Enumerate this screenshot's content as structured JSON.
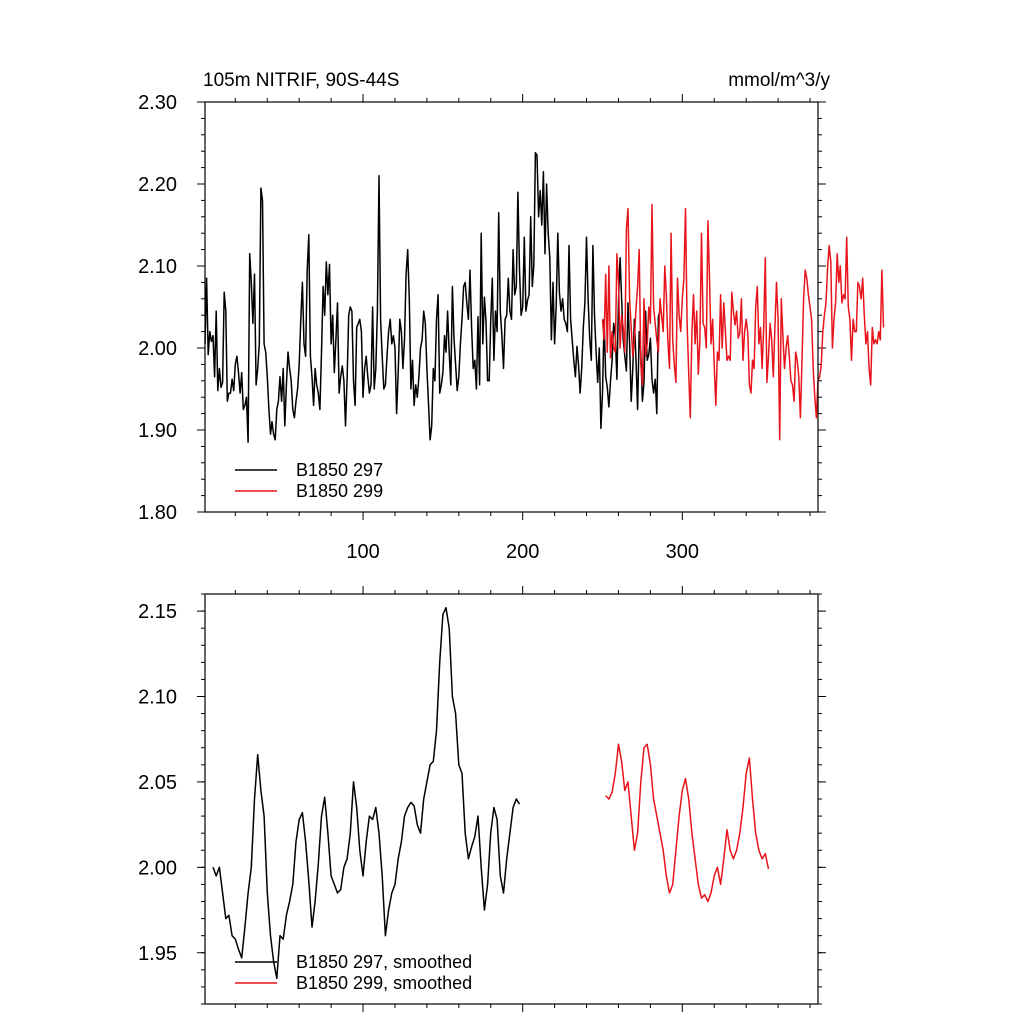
{
  "chart_data": [
    {
      "type": "line",
      "title": "105m NITRIF, 90S-44S",
      "units": "mmol/m^3/y",
      "xlim": [
        1,
        385
      ],
      "ylim": [
        1.8,
        2.3
      ],
      "yticks": [
        1.8,
        1.9,
        2.0,
        2.1,
        2.2,
        2.3
      ],
      "ytick_labels": [
        "1.80",
        "1.90",
        "2.00",
        "2.10",
        "2.20",
        "2.30"
      ],
      "xticks": [
        100,
        200,
        300
      ],
      "xtick_labels": [
        "100",
        "200",
        "300"
      ],
      "legend_position": "bottom-left",
      "grid": false,
      "series": [
        {
          "name": "B1850 297",
          "color": "#000000",
          "x_start": 1,
          "x_step": 1,
          "values": [
            2.005,
            2.085,
            1.992,
            2.02,
            2.008,
            2.015,
            1.965,
            2.045,
            1.948,
            1.975,
            1.952,
            1.958,
            2.068,
            2.045,
            1.935,
            1.945,
            1.945,
            1.962,
            1.948,
            1.98,
            1.99,
            1.97,
            1.945,
            1.97,
            1.925,
            1.93,
            1.94,
            1.885,
            2.115,
            2.08,
            2.03,
            2.09,
            1.955,
            1.975,
            2.005,
            2.195,
            2.18,
            2.005,
            1.995,
            1.965,
            1.925,
            1.895,
            1.91,
            1.895,
            1.888,
            1.925,
            1.935,
            1.965,
            1.935,
            1.975,
            1.905,
            1.955,
            1.995,
            1.975,
            1.96,
            1.925,
            1.915,
            1.935,
            1.95,
            1.98,
            2.035,
            2.08,
            2.005,
            1.99,
            2.095,
            2.138,
            1.99,
            1.965,
            1.93,
            1.975,
            1.955,
            1.945,
            1.925,
            1.995,
            2.075,
            2.04,
            2.105,
            2.065,
            2.102,
            2.005,
            2.04,
            1.97,
            2.01,
            2.055,
            1.945,
            1.965,
            1.978,
            1.96,
            1.905,
            1.962,
            2.04,
            2.05,
            2.045,
            1.96,
            1.93,
            2.025,
            2.03,
            2.035,
            2.02,
            1.94,
            1.975,
            1.99,
            1.965,
            1.945,
            1.955,
            2.05,
            1.95,
            1.975,
            2.045,
            2.21,
            2.035,
            1.99,
            1.95,
            1.955,
            1.99,
            2.02,
            2.035,
            2.005,
            2.015,
            2.0,
            1.92,
            1.97,
            2.035,
            2.02,
            1.975,
            2.01,
            2.09,
            2.12,
            2.06,
            1.95,
            1.985,
            1.93,
            1.955,
            1.94,
            1.965,
            2.0,
            2.01,
            2.045,
            2.03,
            1.975,
            1.932,
            1.888,
            1.905,
            1.975,
            1.96,
            2.035,
            2.065,
            1.945,
            1.955,
            1.97,
            2.015,
            1.995,
            2.045,
            1.995,
            1.955,
            2.075,
            2.012,
            1.98,
            1.948,
            1.965,
            2.005,
            2.035,
            2.075,
            2.08,
            2.055,
            2.035,
            2.095,
            2.025,
            1.975,
            1.985,
            1.95,
            2.038,
            1.955,
            2.14,
            2.005,
            2.062,
            2.033,
            1.96,
            1.96,
            2.032,
            2.085,
            1.985,
            2.045,
            2.02,
            2.165,
            2.045,
            2.015,
            1.975,
            2.035,
            2.04,
            2.085,
            2.045,
            2.035,
            2.12,
            2.065,
            2.075,
            2.19,
            2.095,
            2.04,
            2.05,
            2.135,
            2.045,
            2.058,
            2.065,
            2.16,
            2.075,
            2.1,
            2.238,
            2.235,
            2.16,
            2.192,
            2.15,
            2.215,
            2.115,
            2.2,
            2.14,
            2.11,
            2.01,
            2.08,
            2.005,
            2.052,
            2.14,
            2.068,
            2.045,
            2.06,
            2.035,
            2.03,
            2.02,
            2.125,
            2.035,
            2.01,
            1.985,
            1.965,
            2.002,
            1.98,
            1.945,
            1.975,
            2.025,
            2.055,
            2.135,
            2.06,
            2.012,
            1.985,
            2.125,
            2.04,
            1.995,
            1.958,
            2.0,
            1.902,
            1.945,
            2.035,
            1.965,
            1.952,
            1.928,
            1.96,
            1.985,
            2.03,
            2.015,
            1.962,
            2.058,
            2.11,
            2.06,
            2.01,
            1.99,
            1.972,
            2.055,
            2.005,
            1.935,
            1.975,
            2.035,
            1.985,
            1.925,
            2.02,
            1.995,
            1.935,
            1.958,
            2.045,
            1.985,
            1.992,
            2.012,
            1.962,
            1.945,
            1.962,
            1.92,
            2.038,
            2.045
          ]
        },
        {
          "name": "B1850 299",
          "color": "#e8141c",
          "x_start": 250,
          "x_step": 1,
          "values": [
            2.035,
            2.01,
            2.09,
            1.995,
            2.1,
            1.988,
            2.02,
            2.0,
            1.995,
            2.115,
            2.08,
            2.0,
            2.04,
            2.025,
            1.995,
            2.145,
            2.17,
            2.06,
            2.025,
            1.99,
            2.01,
            2.048,
            2.075,
            2.12,
            1.98,
            1.955,
            2.06,
            1.99,
            2.005,
            2.05,
            2.03,
            2.175,
            2.05,
            2.03,
            2.01,
            1.995,
            2.06,
            2.04,
            2.02,
            2.1,
            2.065,
            2.008,
            1.975,
            2.14,
            2.01,
            1.98,
            1.958,
            2.085,
            2.04,
            2.02,
            2.06,
            2.085,
            2.17,
            2.03,
            1.97,
            1.915,
            2.02,
            2.065,
            2.005,
            2.045,
            1.968,
            2.01,
            2.14,
            2.03,
            2.025,
            2.0,
            2.155,
            2.09,
            2.005,
            2.035,
            1.98,
            1.93,
            1.995,
            1.985,
            2.065,
            2.0,
            2.055,
            2.02,
            1.985,
            1.99,
            1.985,
            2.068,
            2.045,
            2.028,
            2.045,
            2.012,
            2.018,
            2.06,
            1.985,
            2.02,
            2.035,
            2.018,
            1.955,
            1.945,
            1.985,
            1.975,
            2.05,
            2.075,
            2.005,
            2.025,
            1.975,
            2.025,
            2.11,
            1.958,
            1.99,
            2.03,
            2.01,
            1.965,
            2.025,
            2.08,
            2.035,
            1.888,
            2.06,
            2.015,
            1.975,
            2.0,
            2.015,
            1.99,
            1.96,
            1.955,
            1.935,
            1.995,
            1.985,
            1.965,
            1.915,
            1.985,
            2.06,
            2.095,
            2.085,
            2.065,
            2.05,
            2.035,
            1.975,
            1.94,
            1.915,
            1.96,
            1.965,
            1.978,
            2.02,
            2.04,
            2.055,
            2.098,
            2.125,
            2.105,
            2.0,
            2.035,
            2.055,
            2.115,
            2.08,
            2.1,
            2.055,
            2.065,
            2.06,
            2.135,
            2.05,
            2.035,
            1.985,
            2.035,
            2.02,
            2.02,
            2.08,
            2.075,
            2.06,
            2.085,
            2.04,
            2.005,
            2.02,
            1.975,
            1.955,
            2.025,
            2.005,
            2.01,
            2.005,
            2.02,
            2.01,
            2.095,
            2.025
          ]
        }
      ]
    },
    {
      "type": "line",
      "title": "",
      "xlim": [
        1,
        385
      ],
      "ylim": [
        1.92,
        2.16
      ],
      "yticks": [
        1.95,
        2.0,
        2.05,
        2.1,
        2.15
      ],
      "ytick_labels": [
        "1.95",
        "2.00",
        "2.05",
        "2.10",
        "2.15"
      ],
      "xticks": [
        100,
        200,
        300
      ],
      "xtick_labels": [],
      "legend_position": "bottom-left",
      "grid": false,
      "series": [
        {
          "name": "B1850 297, smoothed",
          "color": "#000000",
          "x_start": 6,
          "x_step": 2,
          "values": [
            2.0,
            1.995,
            2.0,
            1.985,
            1.97,
            1.972,
            1.96,
            1.958,
            1.952,
            1.947,
            1.965,
            1.985,
            2.0,
            2.04,
            2.066,
            2.045,
            2.03,
            1.985,
            1.96,
            1.945,
            1.935,
            1.96,
            1.958,
            1.972,
            1.98,
            1.99,
            2.015,
            2.028,
            2.032,
            2.015,
            1.992,
            1.965,
            1.98,
            2.002,
            2.03,
            2.041,
            2.02,
            1.995,
            1.99,
            1.985,
            1.987,
            2.0,
            2.005,
            2.02,
            2.05,
            2.035,
            2.01,
            1.995,
            2.015,
            2.03,
            2.028,
            2.035,
            2.02,
            1.995,
            1.96,
            1.975,
            1.985,
            1.99,
            2.005,
            2.015,
            2.03,
            2.035,
            2.038,
            2.036,
            2.025,
            2.02,
            2.04,
            2.05,
            2.06,
            2.062,
            2.08,
            2.12,
            2.148,
            2.152,
            2.14,
            2.1,
            2.09,
            2.06,
            2.055,
            2.02,
            2.005,
            2.012,
            2.018,
            2.03,
            2.0,
            1.975,
            1.99,
            2.02,
            2.035,
            2.028,
            1.995,
            1.985,
            2.005,
            2.02,
            2.035,
            2.04,
            2.037
          ]
        },
        {
          "name": "B1850 299, smoothed",
          "color": "#e8141c",
          "x_start": 252,
          "x_step": 2,
          "values": [
            2.042,
            2.04,
            2.044,
            2.055,
            2.072,
            2.062,
            2.045,
            2.05,
            2.03,
            2.01,
            2.02,
            2.05,
            2.07,
            2.072,
            2.06,
            2.04,
            2.03,
            2.02,
            2.01,
            1.995,
            1.985,
            1.99,
            2.01,
            2.03,
            2.045,
            2.052,
            2.04,
            2.02,
            2.005,
            1.99,
            1.982,
            1.984,
            1.98,
            1.985,
            1.995,
            2.0,
            1.99,
            2.005,
            2.022,
            2.01,
            2.005,
            2.01,
            2.02,
            2.035,
            2.055,
            2.064,
            2.04,
            2.02,
            2.01,
            2.005,
            2.008,
            1.999
          ]
        }
      ]
    }
  ]
}
